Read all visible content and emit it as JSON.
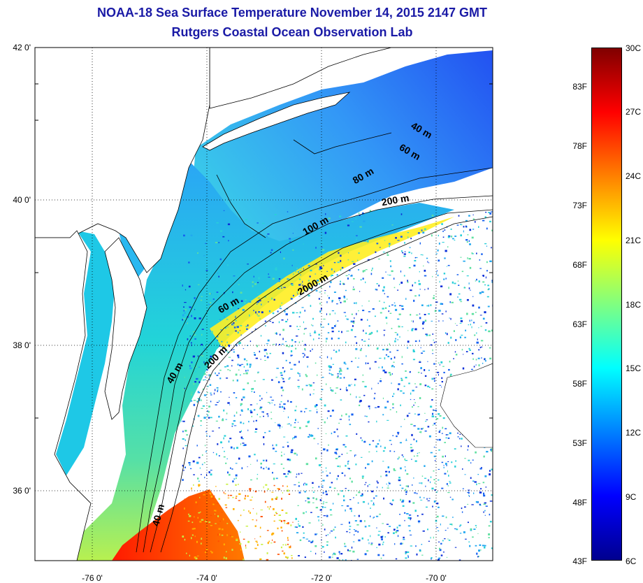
{
  "title": {
    "line1": "NOAA-18 Sea Surface Temperature November 14, 2015 2147 GMT",
    "line2": "Rutgers Coastal Ocean Observation Lab"
  },
  "axes": {
    "lat_ticks": [
      "42 0'",
      "40 0'",
      "38 0'",
      "36 0'"
    ],
    "lon_ticks": [
      "-76 0'",
      "-74 0'",
      "-72 0'",
      "-70 0'"
    ],
    "lat_range": [
      35,
      42
    ],
    "lon_range": [
      -77,
      -69
    ]
  },
  "colorbar": {
    "celsius": [
      "30C",
      "27C",
      "24C",
      "21C",
      "18C",
      "15C",
      "12C",
      "9C",
      "6C"
    ],
    "fahrenheit": [
      "83F",
      "78F",
      "73F",
      "68F",
      "63F",
      "58F",
      "53F",
      "48F",
      "43F"
    ],
    "colors": [
      "#00008f",
      "#0000ff",
      "#0080ff",
      "#00ffff",
      "#80ff80",
      "#ffff00",
      "#ff8000",
      "#ff0000",
      "#800000"
    ]
  },
  "contours": {
    "labels": [
      "40 m",
      "60 m",
      "80 m",
      "200 m",
      "100 m",
      "2000 m",
      "60 m",
      "200 m",
      "40 m",
      "40 m"
    ]
  },
  "colors": {
    "land": "#ffffff",
    "coast": "#000000",
    "title": "#1a1aa6",
    "grid": "#000000"
  }
}
